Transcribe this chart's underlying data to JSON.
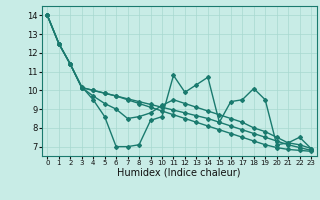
{
  "xlabel": "Humidex (Indice chaleur)",
  "ylabel": "",
  "background_color": "#c8ece6",
  "grid_color": "#a8d8d0",
  "line_color": "#1a7a6e",
  "x_values": [
    0,
    1,
    2,
    3,
    4,
    5,
    6,
    7,
    8,
    9,
    10,
    11,
    12,
    13,
    14,
    15,
    16,
    17,
    18,
    19,
    20,
    21,
    22,
    23
  ],
  "series": [
    [
      14.0,
      12.5,
      11.4,
      10.2,
      9.5,
      8.6,
      7.0,
      7.0,
      7.1,
      8.4,
      8.6,
      10.8,
      9.9,
      10.3,
      10.7,
      8.3,
      9.4,
      9.5,
      10.1,
      9.5,
      7.1,
      7.2,
      7.5,
      6.9
    ],
    [
      14.0,
      12.5,
      11.4,
      10.15,
      9.7,
      9.3,
      9.0,
      8.5,
      8.6,
      8.8,
      9.2,
      9.5,
      9.3,
      9.1,
      8.9,
      8.7,
      8.5,
      8.3,
      8.0,
      7.8,
      7.5,
      7.2,
      7.1,
      6.9
    ],
    [
      14.0,
      12.5,
      11.4,
      10.15,
      10.0,
      9.85,
      9.7,
      9.55,
      9.4,
      9.25,
      9.1,
      8.95,
      8.8,
      8.65,
      8.5,
      8.3,
      8.1,
      7.9,
      7.7,
      7.5,
      7.3,
      7.1,
      6.95,
      6.8
    ],
    [
      14.0,
      12.5,
      11.4,
      10.15,
      10.0,
      9.85,
      9.7,
      9.5,
      9.3,
      9.1,
      8.9,
      8.7,
      8.5,
      8.3,
      8.1,
      7.9,
      7.7,
      7.5,
      7.3,
      7.1,
      6.95,
      6.85,
      6.8,
      6.75
    ]
  ],
  "ylim": [
    6.5,
    14.5
  ],
  "xlim": [
    -0.5,
    23.5
  ],
  "yticks": [
    7,
    8,
    9,
    10,
    11,
    12,
    13,
    14
  ],
  "xticks": [
    0,
    1,
    2,
    3,
    4,
    5,
    6,
    7,
    8,
    9,
    10,
    11,
    12,
    13,
    14,
    15,
    16,
    17,
    18,
    19,
    20,
    21,
    22,
    23
  ],
  "marker": "D",
  "markersize": 2.0,
  "linewidth": 1.0,
  "xlabel_fontsize": 7,
  "xtick_fontsize": 5.0,
  "ytick_fontsize": 6.0
}
